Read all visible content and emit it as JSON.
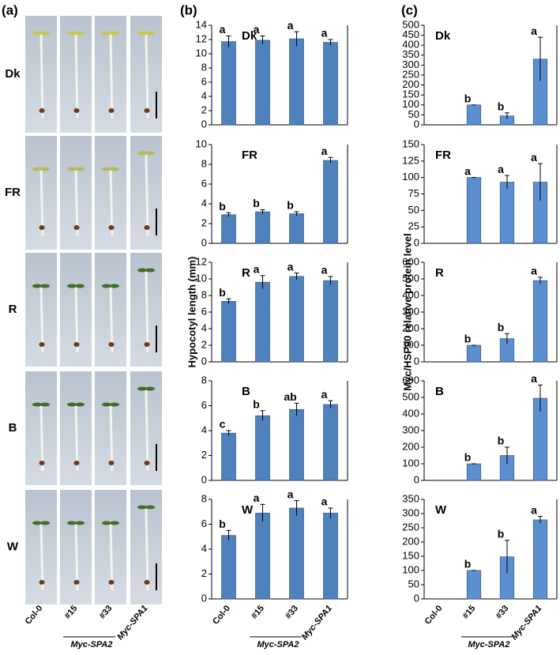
{
  "panel_labels": [
    "(a)",
    "(b)",
    "(c)"
  ],
  "photo_rows": [
    "Dk",
    "FR",
    "R",
    "B",
    "W"
  ],
  "x_axis": {
    "categories": [
      "Col-0",
      "#15",
      "#33",
      "Myc-SPA1"
    ],
    "group_label": "Myc-SPA2"
  },
  "y_labels": [
    "Hypocotyl length (mm)",
    "Myc/HSP90 relative protein level"
  ],
  "chart_data": [
    {
      "type": "bar",
      "label": "Dk",
      "color": "#4f81bd",
      "values": [
        11.7,
        11.9,
        12.1,
        11.6
      ],
      "error": [
        0.8,
        0.6,
        1.0,
        0.4
      ],
      "annotations": [
        "a",
        "a",
        "a",
        "a"
      ],
      "ylim": [
        0,
        14
      ],
      "yticks": [
        0,
        2,
        4,
        6,
        8,
        10,
        12,
        14
      ]
    },
    {
      "type": "bar",
      "label": "FR",
      "color": "#4f81bd",
      "values": [
        2.9,
        3.2,
        3.0,
        8.4
      ],
      "error": [
        0.2,
        0.2,
        0.2,
        0.3
      ],
      "annotations": [
        "b",
        "b",
        "b",
        "a"
      ],
      "ylim": [
        0,
        10
      ],
      "yticks": [
        0,
        2,
        4,
        6,
        8,
        10
      ]
    },
    {
      "type": "bar",
      "label": "R",
      "color": "#4f81bd",
      "values": [
        7.3,
        9.6,
        10.3,
        9.8
      ],
      "error": [
        0.3,
        0.8,
        0.4,
        0.5
      ],
      "annotations": [
        "b",
        "a",
        "a",
        "a"
      ],
      "ylim": [
        0,
        12
      ],
      "yticks": [
        0,
        2,
        4,
        6,
        8,
        10,
        12
      ]
    },
    {
      "type": "bar",
      "label": "B",
      "color": "#4f81bd",
      "values": [
        3.8,
        5.2,
        5.7,
        6.1
      ],
      "error": [
        0.2,
        0.4,
        0.5,
        0.3
      ],
      "annotations": [
        "c",
        "b",
        "ab",
        "a"
      ],
      "ylim": [
        0,
        8
      ],
      "yticks": [
        0,
        2,
        4,
        6,
        8
      ]
    },
    {
      "type": "bar",
      "label": "W",
      "color": "#4f81bd",
      "values": [
        5.1,
        6.9,
        7.3,
        6.9
      ],
      "error": [
        0.4,
        0.7,
        0.6,
        0.4
      ],
      "annotations": [
        "b",
        "a",
        "a",
        "a"
      ],
      "ylim": [
        0,
        8
      ],
      "yticks": [
        0,
        2,
        4,
        6,
        8
      ]
    },
    {
      "type": "bar",
      "label": "Dk",
      "color": "#5b8fd0",
      "values": [
        0,
        100,
        45,
        330
      ],
      "error": [
        0,
        0,
        15,
        110
      ],
      "annotations": [
        null,
        "b",
        "b",
        "a"
      ],
      "ylim": [
        0,
        500
      ],
      "yticks": [
        0,
        50,
        100,
        150,
        200,
        250,
        300,
        350,
        400,
        450,
        500
      ]
    },
    {
      "type": "bar",
      "label": "FR",
      "color": "#5b8fd0",
      "values": [
        0,
        100,
        93,
        93
      ],
      "error": [
        0,
        0,
        10,
        28
      ],
      "annotations": [
        null,
        "a",
        "a",
        "a"
      ],
      "ylim": [
        0,
        150
      ],
      "yticks": [
        0,
        25,
        50,
        75,
        100,
        125,
        150
      ]
    },
    {
      "type": "bar",
      "label": "R",
      "color": "#5b8fd0",
      "values": [
        0,
        100,
        140,
        490
      ],
      "error": [
        0,
        0,
        30,
        20
      ],
      "annotations": [
        null,
        "b",
        "b",
        "a"
      ],
      "ylim": [
        0,
        600
      ],
      "yticks": [
        0,
        100,
        200,
        300,
        400,
        500,
        600
      ]
    },
    {
      "type": "bar",
      "label": "B",
      "color": "#5b8fd0",
      "values": [
        0,
        100,
        150,
        495
      ],
      "error": [
        0,
        0,
        50,
        80
      ],
      "annotations": [
        null,
        "b",
        "b",
        "a"
      ],
      "ylim": [
        0,
        600
      ],
      "yticks": [
        0,
        100,
        200,
        300,
        400,
        500,
        600
      ]
    },
    {
      "type": "bar",
      "label": "W",
      "color": "#5b8fd0",
      "values": [
        0,
        100,
        148,
        278
      ],
      "error": [
        0,
        0,
        58,
        12
      ],
      "annotations": [
        null,
        "b",
        "b",
        "a"
      ],
      "ylim": [
        0,
        350
      ],
      "yticks": [
        0,
        50,
        100,
        150,
        200,
        250,
        300,
        350
      ]
    }
  ]
}
